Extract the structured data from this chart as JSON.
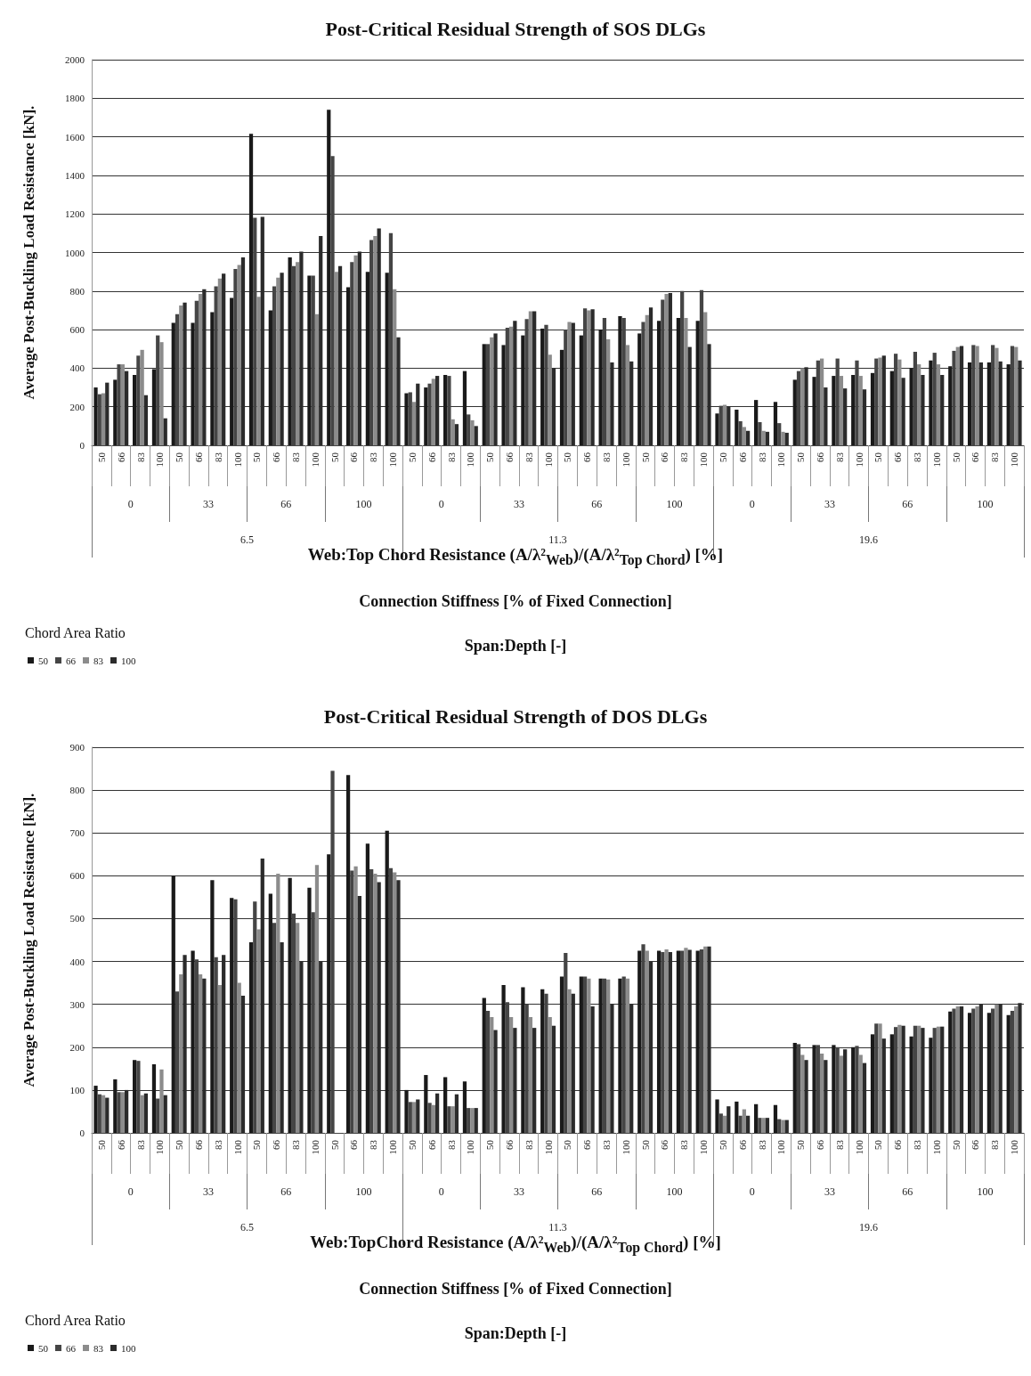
{
  "chart_data": [
    {
      "type": "bar",
      "title": "Post-Critical Residual Strength of SOS DLGs",
      "xlabel": "Web:Top Chord Resistance (A/λ²$_{Web}$)/(A/λ²$_{Top Chord}$)  [%]",
      "ylabel": "Average Post-Buckling Load Resistance [kN].",
      "legend_title": "Chord Area Ratio",
      "categories": [
        "50",
        "66",
        "83",
        "100",
        "50",
        "66",
        "83",
        "100",
        "50",
        "66",
        "83",
        "100",
        "50",
        "66",
        "83",
        "100",
        "50",
        "66",
        "83",
        "100",
        "50",
        "66",
        "83",
        "100",
        "50",
        "66",
        "83",
        "100",
        "50",
        "66",
        "83",
        "100",
        "50",
        "66",
        "83",
        "100",
        "50",
        "66",
        "83",
        "100",
        "50",
        "66",
        "83",
        "100",
        "50",
        "66",
        "83",
        "100"
      ],
      "annotations": [
        "0",
        "33",
        "66",
        "100",
        "0",
        "33",
        "66",
        "100",
        "0",
        "33",
        "66",
        "100",
        "6.5",
        "11.3",
        "19.6",
        "Connection Stiffness [% of Fixed Connection]",
        "Span:Depth [-]"
      ],
      "series": [
        {
          "name": "50",
          "color": "#1a1a1a",
          "values": [
            300,
            340,
            365,
            395,
            635,
            635,
            690,
            765,
            1615,
            700,
            975,
            880,
            1740,
            820,
            900,
            895,
            270,
            300,
            365,
            385,
            525,
            520,
            570,
            605,
            495,
            570,
            600,
            670,
            580,
            645,
            660,
            645,
            165,
            185,
            235,
            225,
            340,
            355,
            360,
            365,
            375,
            385,
            400,
            440,
            410,
            430,
            430,
            420
          ]
        },
        {
          "name": "66",
          "color": "#454545",
          "values": [
            265,
            420,
            465,
            570,
            680,
            750,
            825,
            915,
            1180,
            825,
            930,
            880,
            1500,
            950,
            1065,
            1100,
            275,
            320,
            360,
            160,
            525,
            610,
            655,
            625,
            600,
            710,
            660,
            660,
            640,
            755,
            800,
            805,
            205,
            125,
            120,
            115,
            385,
            440,
            450,
            440,
            450,
            475,
            485,
            480,
            490,
            520,
            520,
            515
          ]
        },
        {
          "name": "83",
          "color": "#8c8c8c",
          "values": [
            270,
            420,
            495,
            535,
            725,
            785,
            865,
            935,
            770,
            870,
            950,
            680,
            900,
            985,
            1085,
            810,
            225,
            345,
            135,
            130,
            560,
            615,
            695,
            470,
            640,
            700,
            550,
            520,
            675,
            785,
            660,
            690,
            210,
            95,
            75,
            70,
            400,
            450,
            360,
            360,
            455,
            445,
            420,
            420,
            510,
            515,
            505,
            510
          ]
        },
        {
          "name": "100",
          "color": "#2b2b2b",
          "values": [
            325,
            385,
            260,
            140,
            740,
            810,
            890,
            975,
            1185,
            895,
            1005,
            1085,
            930,
            1005,
            1125,
            560,
            320,
            360,
            110,
            100,
            580,
            645,
            695,
            400,
            635,
            705,
            430,
            435,
            715,
            790,
            510,
            525,
            200,
            75,
            70,
            65,
            405,
            300,
            295,
            290,
            465,
            350,
            365,
            365,
            515,
            430,
            435,
            440
          ]
        }
      ],
      "ylim": [
        0,
        2000
      ],
      "yticks": [
        0,
        200,
        400,
        600,
        800,
        1000,
        1200,
        1400,
        1600,
        1800,
        2000
      ],
      "grid": "y",
      "legend": "bottom left"
    },
    {
      "type": "bar",
      "title": "Post-Critical Residual Strength of DOS DLGs",
      "xlabel": "Web:TopChord Resistance (A/λ²$_{Web}$)/(A/λ²$_{Top Chord}$)  [%]",
      "ylabel": "Average Post-Buckling Load Resistance [kN].",
      "legend_title": "Chord Area Ratio",
      "categories": [
        "50",
        "66",
        "83",
        "100",
        "50",
        "66",
        "83",
        "100",
        "50",
        "66",
        "83",
        "100",
        "50",
        "66",
        "83",
        "100",
        "50",
        "66",
        "83",
        "100",
        "50",
        "66",
        "83",
        "100",
        "50",
        "66",
        "83",
        "100",
        "50",
        "66",
        "83",
        "100",
        "50",
        "66",
        "83",
        "100",
        "50",
        "66",
        "83",
        "100",
        "50",
        "66",
        "83",
        "100",
        "50",
        "66",
        "83",
        "100"
      ],
      "annotations": [
        "0",
        "33",
        "66",
        "100",
        "0",
        "33",
        "66",
        "100",
        "0",
        "33",
        "66",
        "100",
        "6.5",
        "11.3",
        "19.6",
        "Connection Stiffness [% of Fixed Connection]",
        "Span:Depth [-]"
      ],
      "series": [
        {
          "name": "50",
          "color": "#1a1a1a",
          "values": [
            110,
            125,
            170,
            160,
            600,
            425,
            590,
            548,
            445,
            558,
            595,
            572,
            650,
            835,
            675,
            705,
            100,
            135,
            130,
            120,
            315,
            345,
            340,
            335,
            365,
            365,
            360,
            360,
            425,
            425,
            425,
            425,
            78,
            73,
            67,
            65,
            210,
            205,
            205,
            200,
            230,
            230,
            225,
            222,
            283,
            280,
            280,
            275
          ]
        },
        {
          "name": "66",
          "color": "#454545",
          "values": [
            90,
            95,
            168,
            80,
            330,
            405,
            410,
            545,
            540,
            490,
            512,
            515,
            845,
            612,
            615,
            618,
            72,
            70,
            62,
            58,
            285,
            305,
            300,
            325,
            420,
            365,
            360,
            365,
            440,
            422,
            425,
            428,
            45,
            40,
            35,
            32,
            207,
            205,
            200,
            203,
            255,
            247,
            250,
            245,
            290,
            290,
            290,
            285
          ]
        },
        {
          "name": "83",
          "color": "#8c8c8c",
          "values": [
            88,
            95,
            88,
            148,
            370,
            370,
            345,
            350,
            475,
            605,
            490,
            625,
            null,
            622,
            605,
            608,
            72,
            65,
            62,
            58,
            270,
            270,
            270,
            270,
            335,
            360,
            358,
            360,
            425,
            428,
            432,
            435,
            40,
            55,
            35,
            30,
            182,
            185,
            180,
            182,
            255,
            252,
            250,
            248,
            295,
            295,
            300,
            295
          ]
        },
        {
          "name": "100",
          "color": "#2b2b2b",
          "values": [
            82,
            100,
            92,
            88,
            415,
            360,
            415,
            320,
            640,
            445,
            400,
            400,
            null,
            553,
            585,
            590,
            78,
            92,
            90,
            58,
            240,
            245,
            245,
            250,
            325,
            295,
            300,
            300,
            400,
            422,
            427,
            435,
            62,
            40,
            35,
            30,
            170,
            170,
            195,
            163,
            220,
            250,
            245,
            248,
            295,
            300,
            300,
            303
          ]
        }
      ],
      "ylim": [
        0,
        900
      ],
      "yticks": [
        0,
        100,
        200,
        300,
        400,
        500,
        600,
        700,
        800,
        900
      ],
      "grid": "y",
      "legend": "bottom left"
    }
  ]
}
